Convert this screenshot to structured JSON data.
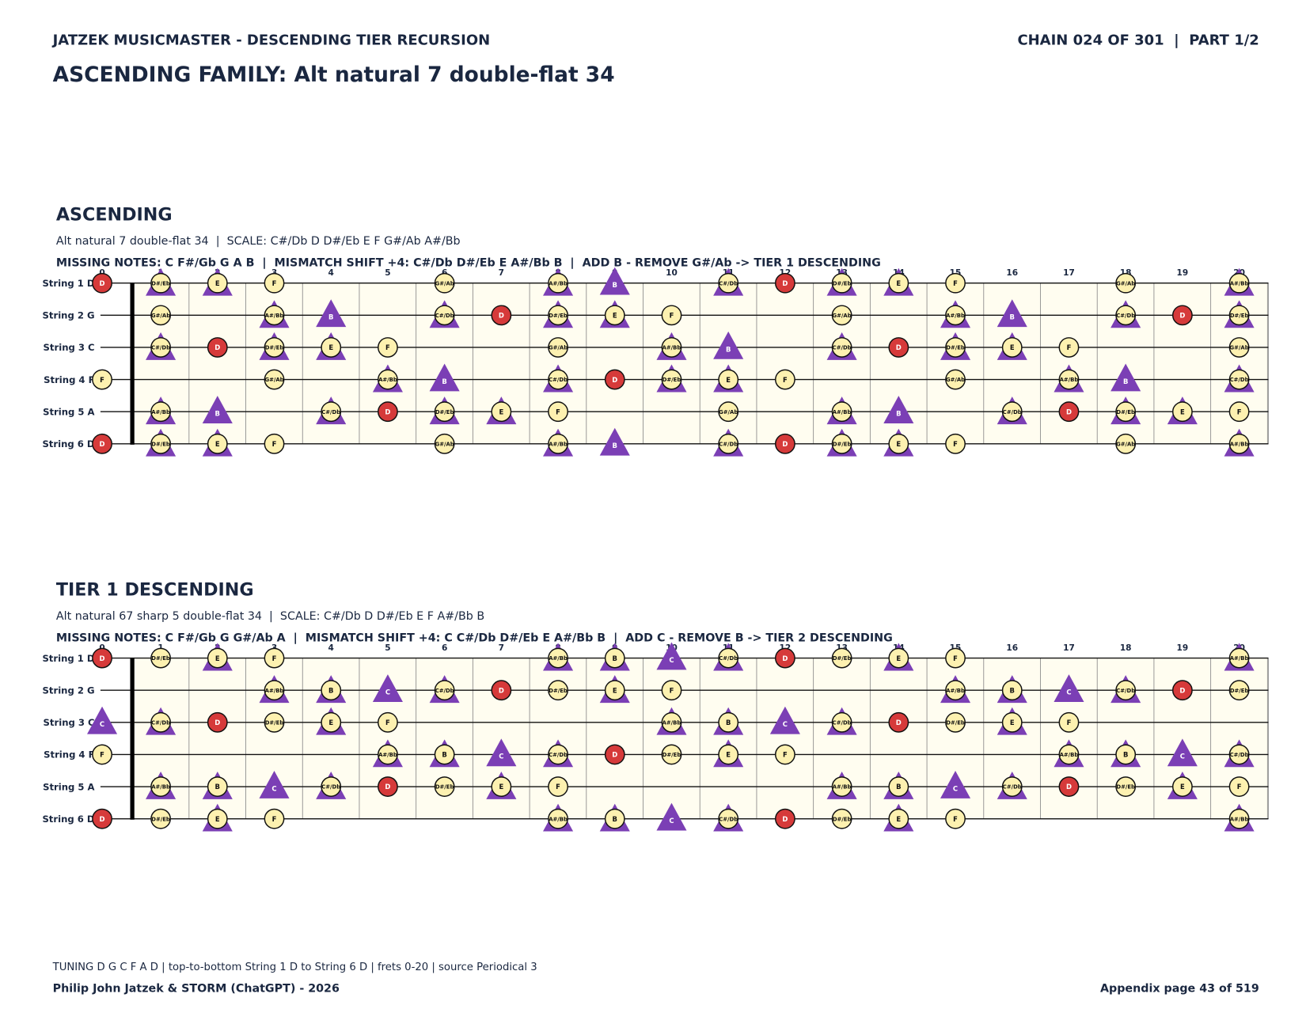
{
  "header": {
    "series": "JATZEK MUSICMASTER - DESCENDING TIER RECURSION",
    "chain": "CHAIN 024 OF 301  |  PART 1/2",
    "title": "ASCENDING FAMILY: Alt natural 7 double-flat 34"
  },
  "panels": [
    {
      "heading": "ASCENDING",
      "subtitle": "Alt natural 7 double-flat 34  |  SCALE: C#/Db D D#/Eb E F G#/Ab A#/Bb",
      "missing": "MISSING NOTES: C F#/Gb G A B  |  MISMATCH SHIFT +4: C#/Db D#/Eb E A#/Bb B  |  ADD B - REMOVE G#/Ab -> TIER 1 DESCENDING",
      "frets": [
        0,
        1,
        2,
        3,
        4,
        5,
        6,
        7,
        8,
        9,
        10,
        11,
        12,
        13,
        14,
        15,
        16,
        17,
        18,
        19,
        20
      ],
      "strings": [
        {
          "label": "String 1 D",
          "notes": [
            "D",
            "D#/Eb",
            "E",
            "F",
            null,
            null,
            "G#/Ab",
            null,
            "A#/Bb",
            "B",
            null,
            "C#/Db",
            "D",
            "D#/Eb",
            "E",
            "F",
            null,
            null,
            "G#/Ab",
            null,
            "A#/Bb"
          ],
          "marks": [
            "root",
            "both",
            "both",
            "circle",
            null,
            null,
            "circle",
            null,
            "both",
            "tri",
            null,
            "both",
            "root",
            "both",
            "both",
            "circle",
            null,
            null,
            "circle",
            null,
            "both"
          ]
        },
        {
          "label": "String 2 G",
          "notes": [
            null,
            "G#/Ab",
            null,
            "A#/Bb",
            "B",
            null,
            "C#/Db",
            "D",
            "D#/Eb",
            "E",
            "F",
            null,
            null,
            "G#/Ab",
            null,
            "A#/Bb",
            "B",
            null,
            "C#/Db",
            "D",
            "D#/Eb"
          ],
          "marks": [
            null,
            "circle",
            null,
            "both",
            "tri",
            null,
            "both",
            "root",
            "both",
            "both",
            "circle",
            null,
            null,
            "circle",
            null,
            "both",
            "tri",
            null,
            "both",
            "root",
            "both"
          ]
        },
        {
          "label": "String 3 C",
          "notes": [
            null,
            "C#/Db",
            "D",
            "D#/Eb",
            "E",
            "F",
            null,
            null,
            "G#/Ab",
            null,
            "A#/Bb",
            "B",
            null,
            "C#/Db",
            "D",
            "D#/Eb",
            "E",
            "F",
            null,
            null,
            "G#/Ab"
          ],
          "marks": [
            null,
            "both",
            "root",
            "both",
            "both",
            "circle",
            null,
            null,
            "circle",
            null,
            "both",
            "tri",
            null,
            "both",
            "root",
            "both",
            "both",
            "circle",
            null,
            null,
            "circle"
          ]
        },
        {
          "label": "String 4 F",
          "notes": [
            "F",
            null,
            null,
            "G#/Ab",
            null,
            "A#/Bb",
            "B",
            null,
            "C#/Db",
            "D",
            "D#/Eb",
            "E",
            "F",
            null,
            null,
            "G#/Ab",
            null,
            "A#/Bb",
            "B",
            null,
            "C#/Db"
          ],
          "marks": [
            "circle",
            null,
            null,
            "circle",
            null,
            "both",
            "tri",
            null,
            "both",
            "root",
            "both",
            "both",
            "circle",
            null,
            null,
            "circle",
            null,
            "both",
            "tri",
            null,
            "both"
          ]
        },
        {
          "label": "String 5 A",
          "notes": [
            null,
            "A#/Bb",
            "B",
            null,
            "C#/Db",
            "D",
            "D#/Eb",
            "E",
            "F",
            null,
            null,
            "G#/Ab",
            null,
            "A#/Bb",
            "B",
            null,
            "C#/Db",
            "D",
            "D#/Eb",
            "E",
            "F"
          ],
          "marks": [
            null,
            "both",
            "tri",
            null,
            "both",
            "root",
            "both",
            "both",
            "circle",
            null,
            null,
            "circle",
            null,
            "both",
            "tri",
            null,
            "both",
            "root",
            "both",
            "both",
            "circle"
          ]
        },
        {
          "label": "String 6 D",
          "notes": [
            "D",
            "D#/Eb",
            "E",
            "F",
            null,
            null,
            "G#/Ab",
            null,
            "A#/Bb",
            "B",
            null,
            "C#/Db",
            "D",
            "D#/Eb",
            "E",
            "F",
            null,
            null,
            "G#/Ab",
            null,
            "A#/Bb"
          ],
          "marks": [
            "root",
            "both",
            "both",
            "circle",
            null,
            null,
            "circle",
            null,
            "both",
            "tri",
            null,
            "both",
            "root",
            "both",
            "both",
            "circle",
            null,
            null,
            "circle",
            null,
            "both"
          ]
        }
      ]
    },
    {
      "heading": "TIER 1 DESCENDING",
      "subtitle": "Alt natural 67 sharp 5 double-flat 34  |  SCALE: C#/Db D D#/Eb E F A#/Bb B",
      "missing": "MISSING NOTES: C F#/Gb G G#/Ab A  |  MISMATCH SHIFT +4: C C#/Db D#/Eb E A#/Bb B  |  ADD C - REMOVE B -> TIER 2 DESCENDING",
      "frets": [
        0,
        1,
        2,
        3,
        4,
        5,
        6,
        7,
        8,
        9,
        10,
        11,
        12,
        13,
        14,
        15,
        16,
        17,
        18,
        19,
        20
      ],
      "strings": [
        {
          "label": "String 1 D",
          "notes": [
            "D",
            "D#/Eb",
            "E",
            "F",
            null,
            null,
            null,
            null,
            "A#/Bb",
            "B",
            "C",
            "C#/Db",
            "D",
            "D#/Eb",
            "E",
            "F",
            null,
            null,
            null,
            null,
            "A#/Bb"
          ],
          "marks": [
            "root",
            "circle",
            "both",
            "circle",
            null,
            null,
            null,
            null,
            "both",
            "both",
            "tri",
            "both",
            "root",
            "circle",
            "both",
            "circle",
            null,
            null,
            null,
            null,
            "both"
          ]
        },
        {
          "label": "String 2 G",
          "notes": [
            null,
            null,
            null,
            "A#/Bb",
            "B",
            "C",
            "C#/Db",
            "D",
            "D#/Eb",
            "E",
            "F",
            null,
            null,
            null,
            null,
            "A#/Bb",
            "B",
            "C",
            "C#/Db",
            "D",
            "D#/Eb"
          ],
          "marks": [
            null,
            null,
            null,
            "both",
            "both",
            "tri",
            "both",
            "root",
            "circle",
            "both",
            "circle",
            null,
            null,
            null,
            null,
            "both",
            "both",
            "tri",
            "both",
            "root",
            "circle"
          ]
        },
        {
          "label": "String 3 C",
          "notes": [
            "C",
            "C#/Db",
            "D",
            "D#/Eb",
            "E",
            "F",
            null,
            null,
            null,
            null,
            "A#/Bb",
            "B",
            "C",
            "C#/Db",
            "D",
            "D#/Eb",
            "E",
            "F",
            null,
            null,
            null
          ],
          "marks": [
            "tri",
            "both",
            "root",
            "circle",
            "both",
            "circle",
            null,
            null,
            null,
            null,
            "both",
            "both",
            "tri",
            "both",
            "root",
            "circle",
            "both",
            "circle",
            null,
            null,
            null
          ]
        },
        {
          "label": "String 4 F",
          "notes": [
            "F",
            null,
            null,
            null,
            null,
            "A#/Bb",
            "B",
            "C",
            "C#/Db",
            "D",
            "D#/Eb",
            "E",
            "F",
            null,
            null,
            null,
            null,
            "A#/Bb",
            "B",
            "C",
            "C#/Db"
          ],
          "marks": [
            "circle",
            null,
            null,
            null,
            null,
            "both",
            "both",
            "tri",
            "both",
            "root",
            "circle",
            "both",
            "circle",
            null,
            null,
            null,
            null,
            "both",
            "both",
            "tri",
            "both"
          ]
        },
        {
          "label": "String 5 A",
          "notes": [
            null,
            "A#/Bb",
            "B",
            "C",
            "C#/Db",
            "D",
            "D#/Eb",
            "E",
            "F",
            null,
            null,
            null,
            null,
            "A#/Bb",
            "B",
            "C",
            "C#/Db",
            "D",
            "D#/Eb",
            "E",
            "F"
          ],
          "marks": [
            null,
            "both",
            "both",
            "tri",
            "both",
            "root",
            "circle",
            "both",
            "circle",
            null,
            null,
            null,
            null,
            "both",
            "both",
            "tri",
            "both",
            "root",
            "circle",
            "both",
            "circle"
          ]
        },
        {
          "label": "String 6 D",
          "notes": [
            "D",
            "D#/Eb",
            "E",
            "F",
            null,
            null,
            null,
            null,
            "A#/Bb",
            "B",
            "C",
            "C#/Db",
            "D",
            "D#/Eb",
            "E",
            "F",
            null,
            null,
            null,
            null,
            "A#/Bb"
          ],
          "marks": [
            "root",
            "circle",
            "both",
            "circle",
            null,
            null,
            null,
            null,
            "both",
            "both",
            "tri",
            "both",
            "root",
            "circle",
            "both",
            "circle",
            null,
            null,
            null,
            null,
            "both"
          ]
        }
      ]
    }
  ],
  "footer": {
    "note": "TUNING D G C F A D | top-to-bottom String 1 D to String 6 D | frets 0-20 | source Periodical 3",
    "credit": "Philip John Jatzek & STORM (ChatGPT) - 2026",
    "page": "Appendix page 43 of 519"
  }
}
